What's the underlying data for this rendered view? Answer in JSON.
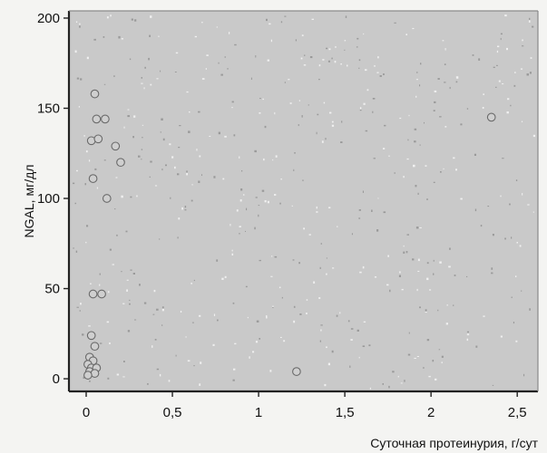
{
  "chart_data": {
    "type": "scatter",
    "title": "",
    "xlabel": "Суточная протеинурия, г/сут",
    "ylabel": "NGAL, мг/дл",
    "xlim": [
      -0.1,
      2.62
    ],
    "ylim": [
      -7,
      204
    ],
    "x_ticks": [
      0,
      0.5,
      1,
      1.5,
      2,
      2.5
    ],
    "x_tick_labels": [
      "0",
      "0,5",
      "1",
      "1,5",
      "2",
      "2,5"
    ],
    "y_ticks": [
      0,
      50,
      100,
      150,
      200
    ],
    "y_tick_labels": [
      "0",
      "50",
      "100",
      "150",
      "200"
    ],
    "grid": false,
    "legend": "none",
    "colors": {
      "plot_background": "#c9c9c9",
      "point_fill": "#cfcfcf",
      "point_stroke": "#6a6a6a",
      "axis": "#222222"
    },
    "series": [
      {
        "points": [
          {
            "x": 0.05,
            "y": 158
          },
          {
            "x": 0.06,
            "y": 144
          },
          {
            "x": 0.11,
            "y": 144
          },
          {
            "x": 0.03,
            "y": 132
          },
          {
            "x": 0.07,
            "y": 133
          },
          {
            "x": 0.17,
            "y": 129
          },
          {
            "x": 0.2,
            "y": 120
          },
          {
            "x": 0.04,
            "y": 111
          },
          {
            "x": 0.12,
            "y": 100
          },
          {
            "x": 0.04,
            "y": 47
          },
          {
            "x": 0.09,
            "y": 47
          },
          {
            "x": 0.03,
            "y": 24
          },
          {
            "x": 0.05,
            "y": 18
          },
          {
            "x": 0.02,
            "y": 12
          },
          {
            "x": 0.04,
            "y": 10
          },
          {
            "x": 0.01,
            "y": 8
          },
          {
            "x": 0.03,
            "y": 6
          },
          {
            "x": 0.06,
            "y": 6
          },
          {
            "x": 0.02,
            "y": 4
          },
          {
            "x": 0.05,
            "y": 3
          },
          {
            "x": 0.01,
            "y": 2
          },
          {
            "x": 1.22,
            "y": 4
          },
          {
            "x": 2.35,
            "y": 145
          }
        ]
      }
    ]
  }
}
